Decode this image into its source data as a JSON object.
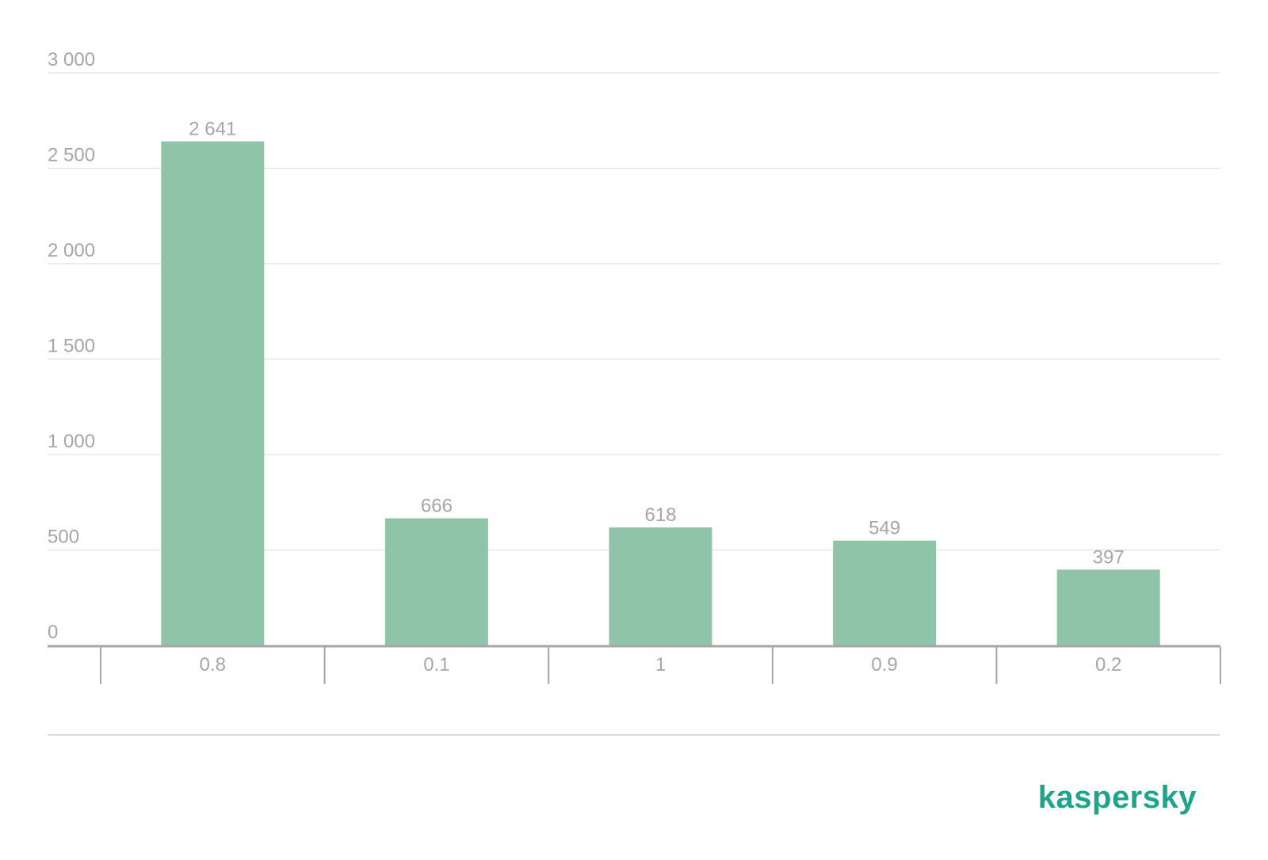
{
  "chart_data": {
    "type": "bar",
    "categories": [
      "0.8",
      "0.1",
      "1",
      "0.9",
      "0.2"
    ],
    "values": [
      2641,
      666,
      618,
      549,
      397
    ],
    "value_labels": [
      "2 641",
      "666",
      "618",
      "549",
      "397"
    ],
    "y_ticks": [
      0,
      500,
      1000,
      1500,
      2000,
      2500,
      3000
    ],
    "y_tick_labels": [
      "0",
      "500",
      "1 000",
      "1 500",
      "2 000",
      "2 500",
      "3 000"
    ],
    "ylim": [
      0,
      3000
    ],
    "grid": true,
    "title": "",
    "xlabel": "",
    "ylabel": "",
    "bar_color": "#90c4a8",
    "grid_color": "#e6e6e6",
    "axis_color": "#a6a6a6",
    "text_color": "#a6a6a6"
  },
  "brand": {
    "logo_text": "kaspersky",
    "color": "#1fa38a"
  }
}
